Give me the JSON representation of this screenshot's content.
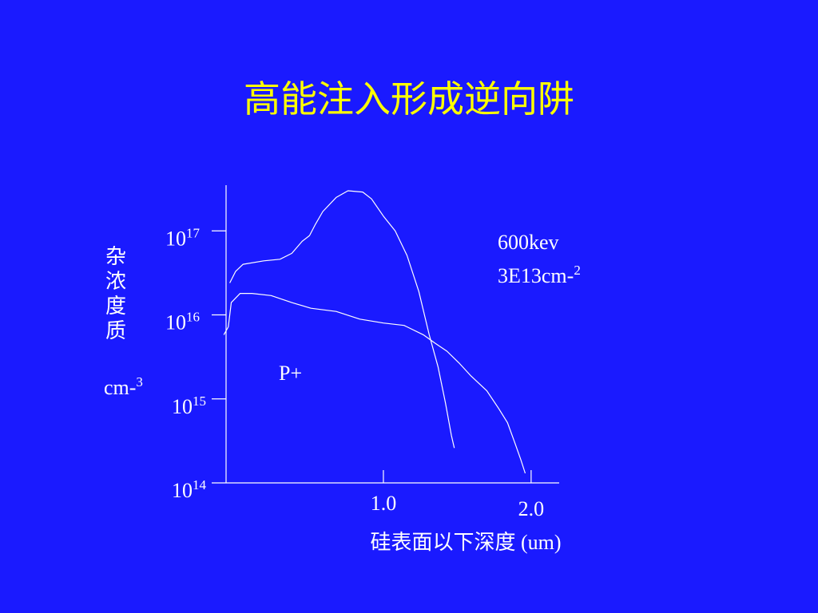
{
  "chart_data": {
    "type": "line",
    "title": "高能注入形成逆向阱",
    "ylabel": {
      "lines": [
        "杂",
        "浓",
        "度",
        "质"
      ],
      "unit": "cm-",
      "unit_exponent": "3"
    },
    "xlabel": "硅表面以下深度 (um)",
    "annotations": [
      {
        "text": "600kev"
      },
      {
        "text": "3E13cm-",
        "exponent": "2"
      },
      {
        "text": "P+"
      }
    ],
    "log_y": true,
    "xlim": [
      -0.065,
      2.19
    ],
    "ylim": [
      100000000000000.0,
      3.5e+17
    ],
    "xticks": [
      {
        "value": 1,
        "label": "1.0"
      },
      {
        "value": 2,
        "label": "2.0"
      }
    ],
    "yticks": [
      {
        "value": 100000000000000.0,
        "label": "10",
        "exponent": "14"
      },
      {
        "value": 1000000000000000.0,
        "label": "10",
        "exponent": "15"
      },
      {
        "value": 1e+16,
        "label": "10",
        "exponent": "16"
      },
      {
        "value": 1e+17,
        "label": "10",
        "exponent": "17"
      }
    ],
    "series": [
      {
        "color": "#ffffff",
        "x": [
          -0.04,
          0,
          0.05,
          0.19,
          0.3,
          0.38,
          0.45,
          0.5,
          0.54,
          0.59,
          0.68,
          0.76,
          0.86,
          0.92,
          1.0,
          1.08,
          1.16,
          1.24,
          1.31,
          1.37,
          1.42,
          1.46,
          1.48
        ],
        "values": [
          2.4e+16,
          3.3e+16,
          4e+16,
          4.4e+16,
          4.6e+16,
          5.4e+16,
          7.5e+16,
          8.8e+16,
          1.2e+17,
          1.7e+17,
          2.5e+17,
          3e+17,
          2.9e+17,
          2.4e+17,
          1.5e+17,
          1e+17,
          5.1e+16,
          1.9e+16,
          5800000000000000.0,
          2400000000000000.0,
          900000000000000.0,
          370000000000000.0,
          260000000000000.0
        ]
      },
      {
        "color": "#ffffff",
        "x": [
          -0.08,
          -0.05,
          -0.03,
          0.03,
          0.11,
          0.24,
          0.38,
          0.51,
          0.68,
          0.84,
          1.0,
          1.14,
          1.27,
          1.35,
          1.43,
          1.51,
          1.59,
          1.7,
          1.78,
          1.84,
          1.89,
          1.93,
          1.96
        ],
        "values": [
          5800000000000000.0,
          7200000000000000.0,
          1.4e+16,
          1.8e+16,
          1.8e+16,
          1.7e+16,
          1.4e+16,
          1.2e+16,
          1.1e+16,
          8900000000000000.0,
          8000000000000000.0,
          7500000000000000.0,
          5800000000000000.0,
          4600000000000000.0,
          3700000000000000.0,
          2700000000000000.0,
          1900000000000000.0,
          1250000000000000.0,
          770000000000000.0,
          520000000000000.0,
          300000000000000.0,
          190000000000000.0,
          130000000000000.0
        ]
      }
    ]
  }
}
